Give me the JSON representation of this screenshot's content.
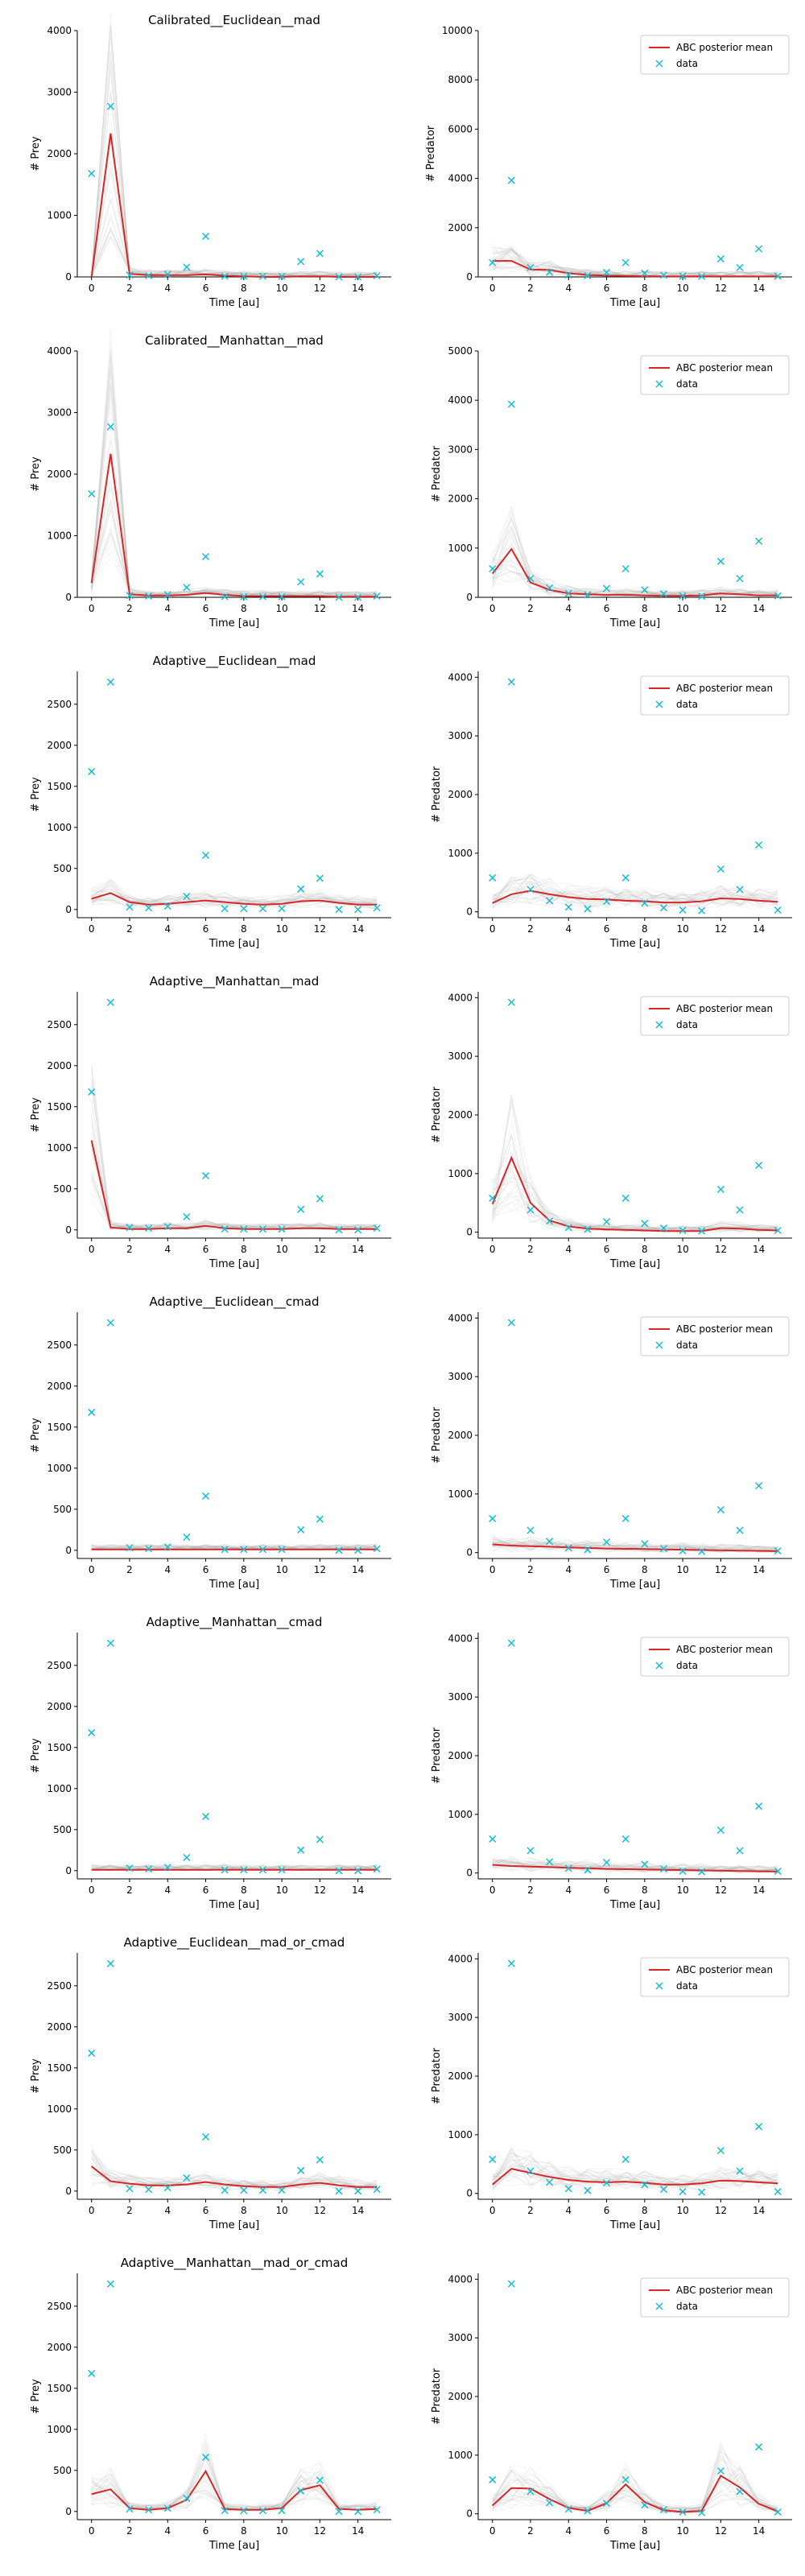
{
  "colors": {
    "mean": "#d62728",
    "data": "#17becf",
    "samples": "#9e9e9e",
    "axis": "#000000"
  },
  "legend_labels": {
    "mean": "ABC posterior mean",
    "data": "data"
  },
  "chart_data": [
    {
      "type": "line",
      "row": 0,
      "col": 0,
      "title": "Calibrated__Euclidean__mad",
      "ylabel": "# Prey",
      "xlabel": "Time [au]",
      "xlim": [
        0,
        15
      ],
      "ylim": [
        0,
        4000
      ],
      "legend": false,
      "x": [
        0,
        1,
        2,
        3,
        4,
        5,
        6,
        7,
        8,
        9,
        10,
        11,
        12,
        13,
        14,
        15
      ],
      "series": [
        {
          "name": "ABC posterior mean",
          "values": [
            0,
            2330,
            50,
            30,
            30,
            30,
            40,
            20,
            10,
            0,
            0,
            10,
            10,
            0,
            0,
            0
          ]
        },
        {
          "name": "data",
          "values": [
            1680,
            2770,
            30,
            20,
            40,
            160,
            660,
            10,
            10,
            10,
            10,
            250,
            380,
            0,
            0,
            20
          ]
        }
      ]
    },
    {
      "type": "line",
      "row": 0,
      "col": 1,
      "title": "",
      "ylabel": "# Predator",
      "xlabel": "Time [au]",
      "xlim": [
        0,
        15
      ],
      "ylim": [
        0,
        10000
      ],
      "legend": true,
      "x": [
        0,
        1,
        2,
        3,
        4,
        5,
        6,
        7,
        8,
        9,
        10,
        11,
        12,
        13,
        14,
        15
      ],
      "series": [
        {
          "name": "ABC posterior mean",
          "values": [
            650,
            650,
            300,
            280,
            150,
            80,
            60,
            40,
            30,
            20,
            20,
            20,
            20,
            20,
            20,
            20
          ]
        },
        {
          "name": "data",
          "values": [
            580,
            3920,
            380,
            190,
            80,
            50,
            180,
            580,
            150,
            70,
            30,
            20,
            730,
            380,
            1140,
            30
          ]
        }
      ]
    },
    {
      "type": "line",
      "row": 1,
      "col": 0,
      "title": "Calibrated__Manhattan__mad",
      "ylabel": "# Prey",
      "xlabel": "Time [au]",
      "xlim": [
        0,
        15
      ],
      "ylim": [
        0,
        4000
      ],
      "legend": false,
      "x": [
        0,
        1,
        2,
        3,
        4,
        5,
        6,
        7,
        8,
        9,
        10,
        11,
        12,
        13,
        14,
        15
      ],
      "series": [
        {
          "name": "ABC posterior mean",
          "values": [
            230,
            2330,
            50,
            30,
            30,
            40,
            70,
            40,
            20,
            20,
            20,
            20,
            20,
            10,
            10,
            10
          ]
        },
        {
          "name": "data",
          "values": [
            1680,
            2770,
            30,
            20,
            40,
            160,
            660,
            10,
            10,
            10,
            10,
            250,
            380,
            0,
            0,
            20
          ]
        }
      ]
    },
    {
      "type": "line",
      "row": 1,
      "col": 1,
      "title": "",
      "ylabel": "# Predator",
      "xlabel": "Time [au]",
      "xlim": [
        0,
        15
      ],
      "ylim": [
        0,
        5000
      ],
      "legend": true,
      "x": [
        0,
        1,
        2,
        3,
        4,
        5,
        6,
        7,
        8,
        9,
        10,
        11,
        12,
        13,
        14,
        15
      ],
      "series": [
        {
          "name": "ABC posterior mean",
          "values": [
            480,
            980,
            300,
            150,
            80,
            60,
            50,
            50,
            40,
            30,
            30,
            40,
            80,
            60,
            40,
            40
          ]
        },
        {
          "name": "data",
          "values": [
            580,
            3920,
            380,
            190,
            80,
            50,
            180,
            580,
            150,
            70,
            30,
            20,
            730,
            380,
            1140,
            30
          ]
        }
      ]
    },
    {
      "type": "line",
      "row": 2,
      "col": 0,
      "title": "Adaptive__Euclidean__mad",
      "ylabel": "# Prey",
      "xlabel": "Time [au]",
      "xlim": [
        0,
        15
      ],
      "ylim": [
        -100,
        2900
      ],
      "legend": false,
      "x": [
        0,
        1,
        2,
        3,
        4,
        5,
        6,
        7,
        8,
        9,
        10,
        11,
        12,
        13,
        14,
        15
      ],
      "series": [
        {
          "name": "ABC posterior mean",
          "values": [
            130,
            200,
            90,
            60,
            70,
            90,
            110,
            90,
            70,
            60,
            70,
            100,
            110,
            80,
            60,
            60
          ]
        },
        {
          "name": "data",
          "values": [
            1680,
            2770,
            30,
            20,
            40,
            160,
            660,
            10,
            10,
            10,
            10,
            250,
            380,
            0,
            0,
            20
          ]
        }
      ]
    },
    {
      "type": "line",
      "row": 2,
      "col": 1,
      "title": "",
      "ylabel": "# Predator",
      "xlabel": "Time [au]",
      "xlim": [
        0,
        15
      ],
      "ylim": [
        -100,
        4100
      ],
      "legend": true,
      "x": [
        0,
        1,
        2,
        3,
        4,
        5,
        6,
        7,
        8,
        9,
        10,
        11,
        12,
        13,
        14,
        15
      ],
      "series": [
        {
          "name": "ABC posterior mean",
          "values": [
            150,
            300,
            360,
            300,
            250,
            220,
            210,
            190,
            180,
            160,
            160,
            180,
            230,
            220,
            190,
            170
          ]
        },
        {
          "name": "data",
          "values": [
            580,
            3920,
            380,
            190,
            80,
            50,
            180,
            580,
            150,
            70,
            30,
            20,
            730,
            380,
            1140,
            30
          ]
        }
      ]
    },
    {
      "type": "line",
      "row": 3,
      "col": 0,
      "title": "Adaptive__Manhattan__mad",
      "ylabel": "# Prey",
      "xlabel": "Time [au]",
      "xlim": [
        0,
        15
      ],
      "ylim": [
        -100,
        2900
      ],
      "legend": false,
      "x": [
        0,
        1,
        2,
        3,
        4,
        5,
        6,
        7,
        8,
        9,
        10,
        11,
        12,
        13,
        14,
        15
      ],
      "series": [
        {
          "name": "ABC posterior mean",
          "values": [
            1090,
            30,
            10,
            10,
            20,
            20,
            50,
            20,
            10,
            10,
            10,
            20,
            20,
            10,
            10,
            10
          ]
        },
        {
          "name": "data",
          "values": [
            1680,
            2770,
            30,
            20,
            40,
            160,
            660,
            10,
            10,
            10,
            10,
            250,
            380,
            0,
            0,
            20
          ]
        }
      ]
    },
    {
      "type": "line",
      "row": 3,
      "col": 1,
      "title": "",
      "ylabel": "# Predator",
      "xlabel": "Time [au]",
      "xlim": [
        0,
        15
      ],
      "ylim": [
        -100,
        4100
      ],
      "legend": true,
      "x": [
        0,
        1,
        2,
        3,
        4,
        5,
        6,
        7,
        8,
        9,
        10,
        11,
        12,
        13,
        14,
        15
      ],
      "series": [
        {
          "name": "ABC posterior mean",
          "values": [
            480,
            1270,
            500,
            200,
            100,
            60,
            50,
            40,
            30,
            20,
            20,
            20,
            70,
            60,
            40,
            30
          ]
        },
        {
          "name": "data",
          "values": [
            580,
            3920,
            380,
            190,
            80,
            50,
            180,
            580,
            150,
            70,
            30,
            20,
            730,
            380,
            1140,
            30
          ]
        }
      ]
    },
    {
      "type": "line",
      "row": 4,
      "col": 0,
      "title": "Adaptive__Euclidean__cmad",
      "ylabel": "# Prey",
      "xlabel": "Time [au]",
      "xlim": [
        0,
        15
      ],
      "ylim": [
        -100,
        2900
      ],
      "legend": false,
      "x": [
        0,
        1,
        2,
        3,
        4,
        5,
        6,
        7,
        8,
        9,
        10,
        11,
        12,
        13,
        14,
        15
      ],
      "series": [
        {
          "name": "ABC posterior mean",
          "values": [
            10,
            10,
            10,
            10,
            10,
            10,
            10,
            10,
            10,
            10,
            10,
            10,
            10,
            10,
            10,
            10
          ]
        },
        {
          "name": "data",
          "values": [
            1680,
            2770,
            30,
            20,
            40,
            160,
            660,
            10,
            10,
            10,
            10,
            250,
            380,
            0,
            0,
            20
          ]
        }
      ]
    },
    {
      "type": "line",
      "row": 4,
      "col": 1,
      "title": "",
      "ylabel": "# Predator",
      "xlabel": "Time [au]",
      "xlim": [
        0,
        15
      ],
      "ylim": [
        -100,
        4100
      ],
      "legend": true,
      "x": [
        0,
        1,
        2,
        3,
        4,
        5,
        6,
        7,
        8,
        9,
        10,
        11,
        12,
        13,
        14,
        15
      ],
      "series": [
        {
          "name": "ABC posterior mean",
          "values": [
            140,
            120,
            110,
            100,
            90,
            80,
            70,
            65,
            60,
            55,
            50,
            45,
            40,
            35,
            30,
            25
          ]
        },
        {
          "name": "data",
          "values": [
            580,
            3920,
            380,
            190,
            80,
            50,
            180,
            580,
            150,
            70,
            30,
            20,
            730,
            380,
            1140,
            30
          ]
        }
      ]
    },
    {
      "type": "line",
      "row": 5,
      "col": 0,
      "title": "Adaptive__Manhattan__cmad",
      "ylabel": "# Prey",
      "xlabel": "Time [au]",
      "xlim": [
        0,
        15
      ],
      "ylim": [
        -100,
        2900
      ],
      "legend": false,
      "x": [
        0,
        1,
        2,
        3,
        4,
        5,
        6,
        7,
        8,
        9,
        10,
        11,
        12,
        13,
        14,
        15
      ],
      "series": [
        {
          "name": "ABC posterior mean",
          "values": [
            10,
            10,
            10,
            10,
            10,
            10,
            10,
            10,
            10,
            10,
            10,
            10,
            10,
            10,
            10,
            10
          ]
        },
        {
          "name": "data",
          "values": [
            1680,
            2770,
            30,
            20,
            40,
            160,
            660,
            10,
            10,
            10,
            10,
            250,
            380,
            0,
            0,
            20
          ]
        }
      ]
    },
    {
      "type": "line",
      "row": 5,
      "col": 1,
      "title": "",
      "ylabel": "# Predator",
      "xlabel": "Time [au]",
      "xlim": [
        0,
        15
      ],
      "ylim": [
        -100,
        4100
      ],
      "legend": true,
      "x": [
        0,
        1,
        2,
        3,
        4,
        5,
        6,
        7,
        8,
        9,
        10,
        11,
        12,
        13,
        14,
        15
      ],
      "series": [
        {
          "name": "ABC posterior mean",
          "values": [
            140,
            120,
            110,
            100,
            90,
            80,
            70,
            65,
            60,
            55,
            50,
            45,
            40,
            35,
            30,
            25
          ]
        },
        {
          "name": "data",
          "values": [
            580,
            3920,
            380,
            190,
            80,
            50,
            180,
            580,
            150,
            70,
            30,
            20,
            730,
            380,
            1140,
            30
          ]
        }
      ]
    },
    {
      "type": "line",
      "row": 6,
      "col": 0,
      "title": "Adaptive__Euclidean__mad_or_cmad",
      "ylabel": "# Prey",
      "xlabel": "Time [au]",
      "xlim": [
        0,
        15
      ],
      "ylim": [
        -100,
        2900
      ],
      "legend": false,
      "x": [
        0,
        1,
        2,
        3,
        4,
        5,
        6,
        7,
        8,
        9,
        10,
        11,
        12,
        13,
        14,
        15
      ],
      "series": [
        {
          "name": "ABC posterior mean",
          "values": [
            300,
            120,
            90,
            70,
            70,
            80,
            110,
            80,
            60,
            50,
            50,
            80,
            100,
            70,
            50,
            50
          ]
        },
        {
          "name": "data",
          "values": [
            1680,
            2770,
            30,
            20,
            40,
            160,
            660,
            10,
            10,
            10,
            10,
            250,
            380,
            0,
            0,
            20
          ]
        }
      ]
    },
    {
      "type": "line",
      "row": 6,
      "col": 1,
      "title": "",
      "ylabel": "# Predator",
      "xlabel": "Time [au]",
      "xlim": [
        0,
        15
      ],
      "ylim": [
        -100,
        4100
      ],
      "legend": true,
      "x": [
        0,
        1,
        2,
        3,
        4,
        5,
        6,
        7,
        8,
        9,
        10,
        11,
        12,
        13,
        14,
        15
      ],
      "series": [
        {
          "name": "ABC posterior mean",
          "values": [
            150,
            420,
            350,
            280,
            230,
            200,
            190,
            200,
            180,
            150,
            150,
            170,
            220,
            210,
            190,
            170
          ]
        },
        {
          "name": "data",
          "values": [
            580,
            3920,
            380,
            190,
            80,
            50,
            180,
            580,
            150,
            70,
            30,
            20,
            730,
            380,
            1140,
            30
          ]
        }
      ]
    },
    {
      "type": "line",
      "row": 7,
      "col": 0,
      "title": "Adaptive__Manhattan__mad_or_cmad",
      "ylabel": "# Prey",
      "xlabel": "Time [au]",
      "xlim": [
        0,
        15
      ],
      "ylim": [
        -100,
        2900
      ],
      "legend": false,
      "x": [
        0,
        1,
        2,
        3,
        4,
        5,
        6,
        7,
        8,
        9,
        10,
        11,
        12,
        13,
        14,
        15
      ],
      "series": [
        {
          "name": "ABC posterior mean",
          "values": [
            210,
            270,
            40,
            20,
            40,
            140,
            490,
            30,
            20,
            20,
            40,
            260,
            320,
            30,
            20,
            30
          ]
        },
        {
          "name": "data",
          "values": [
            1680,
            2770,
            30,
            20,
            40,
            160,
            660,
            10,
            10,
            10,
            10,
            250,
            380,
            0,
            0,
            20
          ]
        }
      ]
    },
    {
      "type": "line",
      "row": 7,
      "col": 1,
      "title": "",
      "ylabel": "# Predator",
      "xlabel": "Time [au]",
      "xlim": [
        0,
        15
      ],
      "ylim": [
        -100,
        4100
      ],
      "legend": true,
      "x": [
        0,
        1,
        2,
        3,
        4,
        5,
        6,
        7,
        8,
        9,
        10,
        11,
        12,
        13,
        14,
        15
      ],
      "series": [
        {
          "name": "ABC posterior mean",
          "values": [
            140,
            440,
            430,
            250,
            100,
            50,
            180,
            500,
            200,
            60,
            30,
            50,
            650,
            450,
            170,
            40
          ]
        },
        {
          "name": "data",
          "values": [
            580,
            3920,
            380,
            190,
            80,
            50,
            180,
            580,
            150,
            70,
            30,
            20,
            730,
            380,
            1140,
            30
          ]
        }
      ]
    }
  ]
}
